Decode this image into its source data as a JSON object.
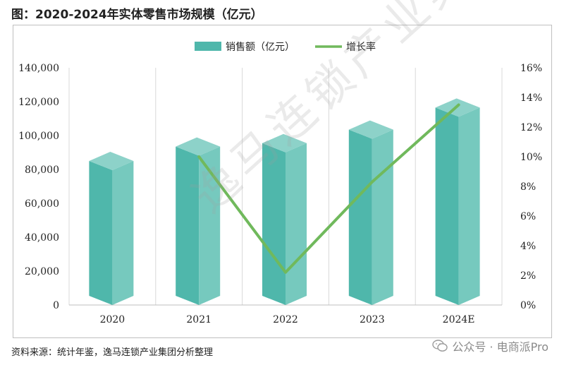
{
  "page": {
    "figure_title": "图：2020-2024年实体零售市场规模（亿元）",
    "source": "资料来源：统计年鉴，逸马连锁产业集团分析整理",
    "wechat_label": "公众号 · 电商派Pro",
    "watermark": "逸马连锁产业集团"
  },
  "chart_data": {
    "type": "bar",
    "categories": [
      "2020",
      "2021",
      "2022",
      "2023",
      "2024E"
    ],
    "series": [
      {
        "name": "销售额（亿元）",
        "type": "bar",
        "axis": "left",
        "values": [
          85000,
          93500,
          95500,
          103500,
          116500
        ]
      },
      {
        "name": "增长率",
        "type": "line",
        "axis": "right",
        "values": [
          null,
          10.0,
          2.2,
          8.3,
          13.5
        ]
      }
    ],
    "left_axis": {
      "min": 0,
      "max": 140000,
      "step": 20000,
      "tick_labels": [
        "0",
        "20,000",
        "40,000",
        "60,000",
        "80,000",
        "100,000",
        "120,000",
        "140,000"
      ]
    },
    "right_axis": {
      "min": 0,
      "max": 16,
      "step": 2,
      "tick_labels": [
        "0%",
        "2%",
        "4%",
        "6%",
        "8%",
        "10%",
        "12%",
        "14%",
        "16%"
      ]
    },
    "legend_position": "top-center",
    "grid": "vertical",
    "colors": {
      "bar_front": "#4fb7ab",
      "bar_side": "#76c9be",
      "bar_top": "#8dd2c9",
      "line": "#70b95c"
    }
  }
}
